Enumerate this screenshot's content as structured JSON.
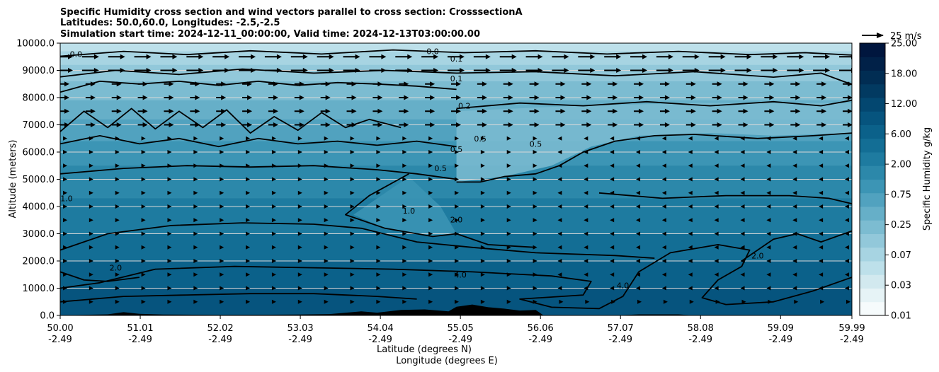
{
  "chart_data": {
    "type": "contour",
    "title_lines": [
      "Specific Humidity cross section and wind vectors parallel to cross section: CrosssectionA",
      "Latitudes: 50.0,60.0, Longitudes: -2.5,-2.5",
      "Simulation start time: 2024-12-11_00:00:00, Valid time: 2024-12-13T03:00:00.00"
    ],
    "ylabel": "Altitude (meters)",
    "xlabel_lat": "Latitude (degrees N)",
    "xlabel_lon": "Longitude (degrees E)",
    "ylim": [
      0,
      10000
    ],
    "xlim": [
      50.0,
      59.99
    ],
    "y_ticks": [
      {
        "value": 0,
        "label": "0.0"
      },
      {
        "value": 1000,
        "label": "1000.0"
      },
      {
        "value": 2000,
        "label": "2000.0"
      },
      {
        "value": 3000,
        "label": "3000.0"
      },
      {
        "value": 4000,
        "label": "4000.0"
      },
      {
        "value": 5000,
        "label": "5000.0"
      },
      {
        "value": 6000,
        "label": "6000.0"
      },
      {
        "value": 7000,
        "label": "7000.0"
      },
      {
        "value": 8000,
        "label": "8000.0"
      },
      {
        "value": 9000,
        "label": "9000.0"
      },
      {
        "value": 10000,
        "label": "10000.0"
      }
    ],
    "x_ticks": [
      {
        "value": 50.0,
        "lat": "50.00",
        "lon": "-2.49"
      },
      {
        "value": 51.01,
        "lat": "51.01",
        "lon": "-2.49"
      },
      {
        "value": 52.02,
        "lat": "52.02",
        "lon": "-2.49"
      },
      {
        "value": 53.03,
        "lat": "53.03",
        "lon": "-2.49"
      },
      {
        "value": 54.04,
        "lat": "54.04",
        "lon": "-2.49"
      },
      {
        "value": 55.05,
        "lat": "55.05",
        "lon": "-2.49"
      },
      {
        "value": 56.06,
        "lat": "56.06",
        "lon": "-2.49"
      },
      {
        "value": 57.07,
        "lat": "57.07",
        "lon": "-2.49"
      },
      {
        "value": 58.08,
        "lat": "58.08",
        "lon": "-2.49"
      },
      {
        "value": 59.09,
        "lat": "59.09",
        "lon": "-2.49"
      },
      {
        "value": 59.99,
        "lat": "59.99",
        "lon": "-2.49"
      }
    ],
    "contour_lines": [
      {
        "level": "0.1",
        "points": [
          [
            50.0,
            9520
          ],
          [
            50.8,
            9700
          ],
          [
            51.6,
            9580
          ],
          [
            52.4,
            9720
          ],
          [
            53.3,
            9600
          ],
          [
            54.2,
            9750
          ],
          [
            55.1,
            9650
          ],
          [
            56.0,
            9720
          ],
          [
            56.9,
            9600
          ],
          [
            57.8,
            9700
          ],
          [
            58.7,
            9580
          ],
          [
            59.4,
            9650
          ],
          [
            59.99,
            9560
          ]
        ]
      },
      {
        "level": "0.1",
        "points": [
          [
            50.0,
            8760
          ],
          [
            50.7,
            9000
          ],
          [
            51.5,
            8850
          ],
          [
            52.3,
            9050
          ],
          [
            53.2,
            8900
          ],
          [
            54.1,
            9000
          ],
          [
            55.0,
            8900
          ],
          [
            56.0,
            8950
          ],
          [
            57.0,
            8800
          ],
          [
            58.0,
            8950
          ],
          [
            59.0,
            8750
          ],
          [
            59.6,
            8900
          ],
          [
            59.99,
            8480
          ]
        ]
      },
      {
        "level": "0.2",
        "points": [
          [
            50.0,
            8200
          ],
          [
            50.5,
            8600
          ],
          [
            51.0,
            8500
          ],
          [
            51.5,
            8600
          ],
          [
            52.0,
            8450
          ],
          [
            52.5,
            8600
          ],
          [
            53.0,
            8450
          ],
          [
            53.5,
            8550
          ],
          [
            54.0,
            8500
          ],
          [
            54.5,
            8420
          ],
          [
            55.0,
            8300
          ]
        ]
      },
      {
        "level": "0.2",
        "points": [
          [
            55.0,
            7600
          ],
          [
            55.8,
            7800
          ],
          [
            56.6,
            7700
          ],
          [
            57.4,
            7850
          ],
          [
            58.2,
            7700
          ],
          [
            59.0,
            7850
          ],
          [
            59.6,
            7700
          ],
          [
            59.99,
            7900
          ]
        ]
      },
      {
        "level": "0.5",
        "points": [
          [
            50.0,
            6750
          ],
          [
            50.3,
            7500
          ],
          [
            50.6,
            6900
          ],
          [
            50.9,
            7600
          ],
          [
            51.2,
            6850
          ],
          [
            51.5,
            7500
          ],
          [
            51.8,
            6900
          ],
          [
            52.1,
            7550
          ],
          [
            52.4,
            6700
          ],
          [
            52.7,
            7300
          ],
          [
            53.0,
            6800
          ],
          [
            53.3,
            7450
          ],
          [
            53.6,
            6900
          ],
          [
            53.9,
            7200
          ],
          [
            54.3,
            6900
          ]
        ]
      },
      {
        "level": "0.5",
        "points": [
          [
            50.0,
            6300
          ],
          [
            50.5,
            6600
          ],
          [
            51.0,
            6300
          ],
          [
            51.5,
            6500
          ],
          [
            52.0,
            6200
          ],
          [
            52.5,
            6500
          ],
          [
            53.0,
            6300
          ],
          [
            53.5,
            6400
          ],
          [
            54.0,
            6250
          ],
          [
            54.5,
            6400
          ],
          [
            55.0,
            6200
          ]
        ]
      },
      {
        "level": "0.5",
        "points": [
          [
            55.0,
            4900
          ],
          [
            55.3,
            4900
          ],
          [
            55.6,
            5100
          ],
          [
            56.0,
            5200
          ],
          [
            56.3,
            5500
          ],
          [
            56.6,
            6000
          ],
          [
            57.0,
            6400
          ],
          [
            57.5,
            6600
          ],
          [
            58.0,
            6650
          ],
          [
            58.8,
            6500
          ],
          [
            59.5,
            6600
          ],
          [
            59.99,
            6700
          ]
        ]
      },
      {
        "level": "1.0",
        "points": [
          [
            50.0,
            5200
          ],
          [
            50.8,
            5400
          ],
          [
            51.6,
            5500
          ],
          [
            52.4,
            5450
          ],
          [
            53.2,
            5500
          ],
          [
            54.0,
            5350
          ],
          [
            54.5,
            5200
          ],
          [
            55.0,
            5000
          ]
        ]
      },
      {
        "level": "1.0",
        "points": [
          [
            54.4,
            5200
          ],
          [
            53.9,
            4400
          ],
          [
            53.6,
            3700
          ],
          [
            54.1,
            3200
          ],
          [
            54.7,
            2900
          ],
          [
            55.0,
            3000
          ],
          [
            55.4,
            2600
          ],
          [
            56.0,
            2500
          ]
        ]
      },
      {
        "level": "2.0",
        "points": [
          [
            50.0,
            2400
          ],
          [
            50.6,
            3000
          ],
          [
            51.4,
            3300
          ],
          [
            52.3,
            3400
          ],
          [
            53.2,
            3350
          ],
          [
            53.8,
            3200
          ],
          [
            54.5,
            2700
          ],
          [
            55.2,
            2500
          ],
          [
            56.0,
            2300
          ],
          [
            57.0,
            2200
          ],
          [
            57.5,
            2100
          ]
        ]
      },
      {
        "level": "2.0",
        "points": [
          [
            56.8,
            4500
          ],
          [
            57.6,
            4300
          ],
          [
            58.4,
            4400
          ],
          [
            59.2,
            4400
          ],
          [
            59.7,
            4300
          ],
          [
            59.99,
            4100
          ]
        ]
      },
      {
        "level": "2.0",
        "points": [
          [
            58.6,
            2000
          ],
          [
            59.0,
            2800
          ],
          [
            59.3,
            3000
          ],
          [
            59.6,
            2700
          ],
          [
            59.99,
            3100
          ]
        ]
      },
      {
        "level": "2.0",
        "points": [
          [
            50.0,
            1600
          ],
          [
            50.3,
            1300
          ],
          [
            50.6,
            1250
          ],
          [
            51.0,
            1400
          ]
        ]
      },
      {
        "level": "4.0",
        "points": [
          [
            50.0,
            1000
          ],
          [
            50.5,
            1200
          ],
          [
            51.2,
            1700
          ],
          [
            52.2,
            1800
          ],
          [
            53.2,
            1750
          ],
          [
            54.2,
            1700
          ],
          [
            55.2,
            1600
          ],
          [
            56.2,
            1450
          ],
          [
            56.7,
            1250
          ],
          [
            56.6,
            750
          ],
          [
            55.8,
            600
          ],
          [
            56.2,
            300
          ],
          [
            56.8,
            250
          ],
          [
            57.1,
            700
          ],
          [
            57.3,
            1600
          ],
          [
            57.7,
            2300
          ],
          [
            58.3,
            2600
          ],
          [
            58.7,
            2400
          ],
          [
            58.6,
            1800
          ],
          [
            58.3,
            1300
          ],
          [
            58.1,
            650
          ],
          [
            58.4,
            400
          ],
          [
            59.0,
            500
          ],
          [
            59.5,
            900
          ],
          [
            59.99,
            1400
          ]
        ]
      },
      {
        "level": "4.0",
        "points": [
          [
            50.0,
            500
          ],
          [
            50.8,
            700
          ],
          [
            51.6,
            750
          ],
          [
            52.4,
            800
          ],
          [
            53.2,
            800
          ],
          [
            54.0,
            700
          ],
          [
            54.5,
            600
          ]
        ]
      }
    ],
    "contour_labels": [
      {
        "text": "0.0",
        "x": 50.2,
        "y": 9600
      },
      {
        "text": "0.0",
        "x": 54.7,
        "y": 9700
      },
      {
        "text": "0.1",
        "x": 55.0,
        "y": 9430
      },
      {
        "text": "0.1",
        "x": 55.0,
        "y": 8700
      },
      {
        "text": "0.2",
        "x": 55.1,
        "y": 7700
      },
      {
        "text": "0.5",
        "x": 55.3,
        "y": 6500
      },
      {
        "text": "0.5",
        "x": 55.0,
        "y": 6100
      },
      {
        "text": "0.5",
        "x": 54.8,
        "y": 5400
      },
      {
        "text": "0.5",
        "x": 56.0,
        "y": 6300
      },
      {
        "text": "1.0",
        "x": 50.08,
        "y": 4300
      },
      {
        "text": "1.0",
        "x": 54.4,
        "y": 3850
      },
      {
        "text": "2.0",
        "x": 55.0,
        "y": 3520
      },
      {
        "text": "2.0",
        "x": 50.7,
        "y": 1750
      },
      {
        "text": "2.0",
        "x": 58.8,
        "y": 2200
      },
      {
        "text": "4.0",
        "x": 55.05,
        "y": 1500
      },
      {
        "text": "4.0",
        "x": 57.1,
        "y": 1100
      }
    ],
    "wind_rows": [
      {
        "altitude": 9500,
        "direction": "east",
        "strength": "strong"
      },
      {
        "altitude": 9000,
        "direction": "east",
        "strength": "strong"
      },
      {
        "altitude": 8500,
        "direction": "east",
        "strength": "medium"
      },
      {
        "altitude": 8000,
        "direction": "east",
        "strength": "medium"
      },
      {
        "altitude": 7500,
        "direction": "east",
        "strength": "medium"
      },
      {
        "altitude": 7000,
        "direction": "east",
        "strength": "medium"
      },
      {
        "altitude": 6500,
        "direction": "east",
        "strength": "small"
      },
      {
        "altitude": 6000,
        "direction": "east",
        "strength": "small"
      },
      {
        "altitude": 5500,
        "direction": "east",
        "strength": "small"
      },
      {
        "altitude": 5000,
        "direction": "east",
        "strength": "small"
      },
      {
        "altitude": 4500,
        "direction": "east",
        "strength": "small"
      },
      {
        "altitude": 4000,
        "direction": "east",
        "strength": "small"
      },
      {
        "altitude": 3500,
        "direction": "east",
        "strength": "small"
      },
      {
        "altitude": 3000,
        "direction": "east",
        "strength": "small"
      },
      {
        "altitude": 2500,
        "direction": "east",
        "strength": "small"
      },
      {
        "altitude": 2000,
        "direction": "east",
        "strength": "small"
      },
      {
        "altitude": 1500,
        "direction": "east",
        "strength": "small"
      },
      {
        "altitude": 1000,
        "direction": "east",
        "strength": "small"
      },
      {
        "altitude": 500,
        "direction": "east",
        "strength": "small"
      }
    ],
    "terrain": [
      [
        50.0,
        0
      ],
      [
        50.6,
        40
      ],
      [
        50.8,
        120
      ],
      [
        51.0,
        60
      ],
      [
        51.3,
        30
      ],
      [
        52.0,
        20
      ],
      [
        53.0,
        30
      ],
      [
        53.4,
        50
      ],
      [
        53.8,
        150
      ],
      [
        54.0,
        100
      ],
      [
        54.3,
        200
      ],
      [
        54.6,
        220
      ],
      [
        54.9,
        150
      ],
      [
        55.0,
        320
      ],
      [
        55.2,
        400
      ],
      [
        55.4,
        300
      ],
      [
        55.6,
        250
      ],
      [
        55.8,
        180
      ],
      [
        56.0,
        200
      ],
      [
        56.1,
        0
      ],
      [
        57.0,
        0
      ],
      [
        57.3,
        40
      ],
      [
        57.8,
        40
      ],
      [
        58.0,
        0
      ],
      [
        59.99,
        0
      ]
    ],
    "quiver_key": "25 m/s",
    "colorbar": {
      "label": "Specific Humidity g/kg",
      "tick_labels": [
        "0.01",
        "0.03",
        "0.07",
        "0.25",
        "0.75",
        "2.00",
        "6.00",
        "12.00",
        "18.00",
        "25.00"
      ],
      "colors": [
        "#f6fbfc",
        "#e6f3f6",
        "#d2e9ef",
        "#bde0ea",
        "#a7d4e2",
        "#92c8da",
        "#7cbcd1",
        "#66afc8",
        "#51a2bf",
        "#3c95b5",
        "#2c88aa",
        "#1e7ba0",
        "#136e95",
        "#0b618a",
        "#06547e",
        "#034770",
        "#023a61",
        "#012d53",
        "#012148",
        "#00163e"
      ]
    },
    "field_bands": [
      {
        "y_top": 10000,
        "color": "#bde0ea"
      },
      {
        "y_top": 9700,
        "color": "#a7d4e2"
      },
      {
        "y_top": 9200,
        "color": "#92c8da"
      },
      {
        "y_top": 8600,
        "color": "#7cbcd1"
      },
      {
        "y_top": 7900,
        "color": "#66afc8"
      },
      {
        "y_top": 7200,
        "color": "#51a2bf"
      },
      {
        "y_top": 6400,
        "color": "#3c95b5"
      },
      {
        "y_top": 5500,
        "color": "#2c88aa"
      },
      {
        "y_top": 4300,
        "color": "#1e7ba0"
      },
      {
        "y_top": 3000,
        "color": "#136e95"
      },
      {
        "y_top": 2000,
        "color": "#0b618a"
      },
      {
        "y_top": 1000,
        "color": "#06547e"
      }
    ],
    "drier_patches": [
      {
        "color": "#7cbcd1",
        "points": [
          [
            55.0,
            4900
          ],
          [
            55.6,
            5100
          ],
          [
            56.2,
            5500
          ],
          [
            56.7,
            6200
          ],
          [
            57.3,
            6600
          ],
          [
            58.2,
            6700
          ],
          [
            59.0,
            6600
          ],
          [
            59.99,
            6700
          ],
          [
            59.99,
            7800
          ],
          [
            58.0,
            7800
          ],
          [
            56.5,
            7700
          ],
          [
            55.0,
            7500
          ]
        ]
      },
      {
        "color": "#3c95b5",
        "points": [
          [
            53.7,
            3700
          ],
          [
            54.1,
            3200
          ],
          [
            54.7,
            2900
          ],
          [
            55.0,
            3000
          ],
          [
            54.8,
            4000
          ],
          [
            54.4,
            5100
          ]
        ]
      }
    ]
  }
}
